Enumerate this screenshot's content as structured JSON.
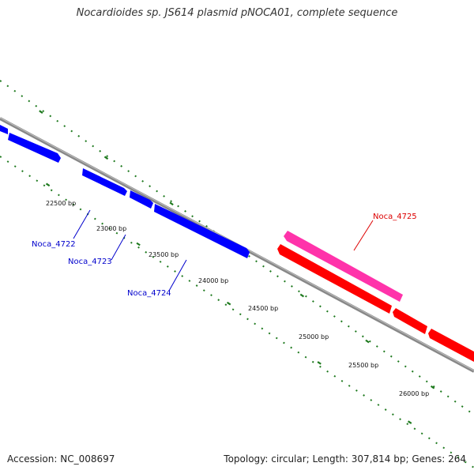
{
  "title": "Nocardioides sp. JS614 plasmid pNOCA01, complete sequence",
  "footer": {
    "accession": "Accession: NC_008697",
    "summary": "Topology: circular; Length: 307,814 bp; Genes: 264"
  },
  "colors": {
    "backbone": "#8c8c8c",
    "tick": "#1f7a1f",
    "forward_gene": "#0000ff",
    "reverse_gene": "#ff0000",
    "highlight_gene": "#ff33aa",
    "forward_label": "#0000cc",
    "reverse_label": "#dd0000"
  },
  "scale_labels": [
    "22500 bp",
    "23000 bp",
    "23500 bp",
    "24000 bp",
    "24500 bp",
    "25000 bp",
    "25500 bp",
    "26000 bp"
  ],
  "genes": [
    {
      "id": "noca-4722",
      "label": "Noca_4722",
      "strand": "forward"
    },
    {
      "id": "noca-4723",
      "label": "Noca_4723",
      "strand": "forward"
    },
    {
      "id": "noca-4724",
      "label": "Noca_4724",
      "strand": "forward"
    },
    {
      "id": "noca-4725",
      "label": "Noca_4725",
      "strand": "reverse-highlight"
    }
  ]
}
